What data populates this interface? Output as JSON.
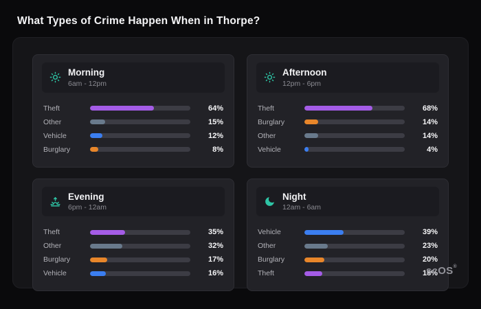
{
  "page": {
    "title": "What Types of Crime Happen When in Thorpe?"
  },
  "brand": {
    "name": "scOS",
    "registered": "®"
  },
  "colors": {
    "accent_icon": "#2ec4a5",
    "theft": "#a45ce6",
    "other": "#697a8c",
    "vehicle": "#3b7ef0",
    "burglary": "#e8862a",
    "track": "#3c3c44"
  },
  "chart_data": [
    {
      "type": "bar",
      "title": "Morning",
      "subtitle": "6am - 12pm",
      "icon": "sun-icon",
      "categories": [
        "Theft",
        "Other",
        "Vehicle",
        "Burglary"
      ],
      "values": [
        64,
        15,
        12,
        8
      ],
      "labels": [
        "64%",
        "15%",
        "12%",
        "8%"
      ],
      "color_keys": [
        "theft",
        "other",
        "vehicle",
        "burglary"
      ],
      "xlim": [
        0,
        100
      ],
      "legend": "none",
      "grid": false
    },
    {
      "type": "bar",
      "title": "Afternoon",
      "subtitle": "12pm - 6pm",
      "icon": "sun-icon",
      "categories": [
        "Theft",
        "Burglary",
        "Other",
        "Vehicle"
      ],
      "values": [
        68,
        14,
        14,
        4
      ],
      "labels": [
        "68%",
        "14%",
        "14%",
        "4%"
      ],
      "color_keys": [
        "theft",
        "burglary",
        "other",
        "vehicle"
      ],
      "xlim": [
        0,
        100
      ],
      "legend": "none",
      "grid": false
    },
    {
      "type": "bar",
      "title": "Evening",
      "subtitle": "6pm - 12am",
      "icon": "sunset-icon",
      "categories": [
        "Theft",
        "Other",
        "Burglary",
        "Vehicle"
      ],
      "values": [
        35,
        32,
        17,
        16
      ],
      "labels": [
        "35%",
        "32%",
        "17%",
        "16%"
      ],
      "color_keys": [
        "theft",
        "other",
        "burglary",
        "vehicle"
      ],
      "xlim": [
        0,
        100
      ],
      "legend": "none",
      "grid": false
    },
    {
      "type": "bar",
      "title": "Night",
      "subtitle": "12am - 6am",
      "icon": "moon-icon",
      "categories": [
        "Vehicle",
        "Other",
        "Burglary",
        "Theft"
      ],
      "values": [
        39,
        23,
        20,
        18
      ],
      "labels": [
        "39%",
        "23%",
        "20%",
        "18%"
      ],
      "color_keys": [
        "vehicle",
        "other",
        "burglary",
        "theft"
      ],
      "xlim": [
        0,
        100
      ],
      "legend": "none",
      "grid": false
    }
  ]
}
